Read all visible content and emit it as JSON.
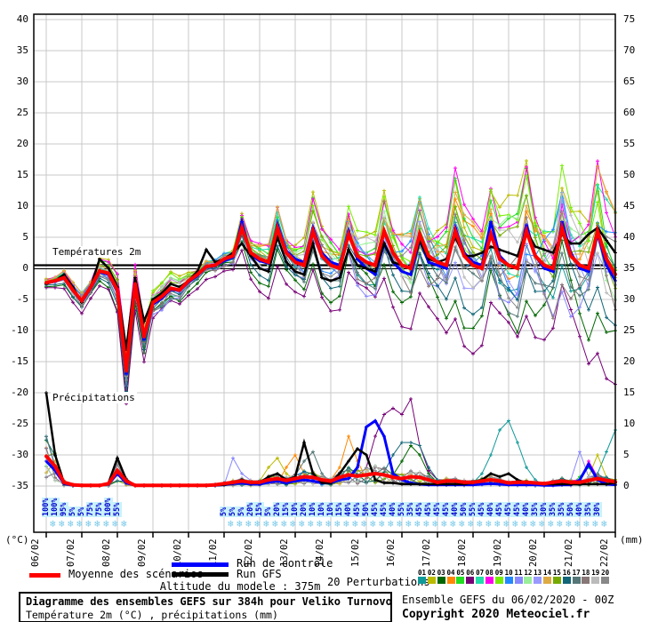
{
  "chart_data": {
    "type": "line",
    "title": "Diagramme des ensembles GEFS sur 384h pour Veliko Turnovo",
    "subtitle": "Température 2m (°C) , précipitations (mm)",
    "step_hours": 6,
    "x_dates": [
      "06/02",
      "07/02",
      "08/02",
      "09/02",
      "10/02",
      "11/02",
      "12/02",
      "13/02",
      "14/02",
      "15/02",
      "16/02",
      "17/02",
      "18/02",
      "19/02",
      "20/02",
      "21/02",
      "22/02"
    ],
    "y_left": {
      "label": "(°C)",
      "min": -35,
      "max": 40,
      "tick_step": 5
    },
    "y_right": {
      "label": "(mm)",
      "min": 0,
      "max": 75,
      "tick_step": 5
    },
    "annotations": {
      "temp_label": "Températures 2m",
      "precip_label": "Précipitations"
    },
    "series": {
      "mean_temp": [
        -2.3,
        -2,
        -1.5,
        -3.5,
        -5.2,
        -3,
        -0.4,
        -0.8,
        -3.5,
        -16.5,
        -2.5,
        -11,
        -5.5,
        -4.5,
        -3.2,
        -3.5,
        -2,
        -1,
        0.3,
        0.5,
        1.5,
        2,
        6.5,
        2.5,
        1.5,
        1,
        6.5,
        2.5,
        1,
        0.5,
        6,
        2,
        0.5,
        0,
        5.5,
        2,
        1,
        0.5,
        6,
        2.5,
        0.5,
        0,
        5.5,
        2,
        1,
        0.5,
        6,
        2,
        0.5,
        0,
        5.5,
        1.5,
        0.5,
        0,
        6,
        2,
        0.5,
        0,
        6.5,
        2,
        0.5,
        0,
        6,
        1.5,
        -1
      ],
      "control_temp": [
        -2.4,
        -2.1,
        -1.6,
        -3.6,
        -5.4,
        -3.2,
        -0.6,
        -1,
        -3.8,
        -17,
        -2.8,
        -11.5,
        -5.8,
        -4.8,
        -3.4,
        -3.6,
        -2.2,
        -1.2,
        0.2,
        0.4,
        1.2,
        1.8,
        7.5,
        2.2,
        1.2,
        0.8,
        7,
        2.8,
        1.5,
        1,
        6.5,
        2.5,
        1,
        0.5,
        6,
        1.5,
        0,
        -1,
        4,
        1,
        -0.5,
        -1,
        4.5,
        1,
        0.5,
        0,
        6.5,
        2.5,
        1,
        0.5,
        7.5,
        2,
        0.5,
        0,
        7,
        2,
        0,
        -0.5,
        7.5,
        2.5,
        0,
        -0.5,
        5.5,
        0.5,
        -2
      ],
      "gfs_temp": [
        -2.5,
        -2,
        -1,
        -3,
        -5.5,
        -3,
        1.5,
        0,
        -3,
        -13,
        -1.5,
        -8.5,
        -5,
        -4,
        -2.5,
        -3,
        -2,
        -0.5,
        3,
        1,
        1.5,
        2.5,
        4,
        2,
        0,
        -0.5,
        5,
        1,
        -0.5,
        -1,
        4,
        -1.5,
        -2,
        -1.5,
        3,
        0.5,
        0,
        -0.5,
        4,
        1,
        0.5,
        0,
        4.5,
        1.5,
        1,
        1.5,
        5,
        2,
        2,
        2.5,
        3.5,
        3,
        2.5,
        2,
        6,
        3.5,
        3,
        2.5,
        5.5,
        4,
        4,
        5.5,
        6.5,
        4.5,
        2.5
      ],
      "spread_env": [
        0.6,
        0.6,
        0.8,
        1,
        1.2,
        1.2,
        1.5,
        1.5,
        1.8,
        2.5,
        2,
        2.5,
        2,
        1.8,
        1.5,
        1.5,
        1.2,
        1,
        0.8,
        0.8,
        1,
        1.2,
        1.8,
        1.8,
        2,
        2.2,
        2.5,
        2.5,
        2.8,
        3,
        3.2,
        3.2,
        3.5,
        3.5,
        3.8,
        3.8,
        4,
        4.2,
        4.5,
        4.5,
        4.8,
        5,
        5.2,
        5.2,
        5.5,
        5.5,
        5.8,
        5.8,
        6,
        6.2,
        6.5,
        6.5,
        6.8,
        7,
        7.2,
        7.2,
        7.5,
        7.5,
        7.8,
        7.8,
        8,
        8.2,
        8.5,
        8.5,
        8.5
      ],
      "mean_precip": [
        4.8,
        3.2,
        0.6,
        0.2,
        0.1,
        0.1,
        0.1,
        0.4,
        2.5,
        0.8,
        0.1,
        0.1,
        0.1,
        0.1,
        0.1,
        0.1,
        0.1,
        0.1,
        0.1,
        0.2,
        0.4,
        0.6,
        0.8,
        0.6,
        0.6,
        1,
        1.2,
        0.9,
        1.2,
        1.5,
        1.4,
        1,
        0.8,
        1.4,
        1.8,
        1.6,
        1.8,
        2,
        1.8,
        1.4,
        1.2,
        1.5,
        1.4,
        1,
        0.6,
        0.8,
        0.8,
        0.6,
        0.6,
        0.8,
        1,
        0.8,
        0.5,
        0.6,
        0.6,
        0.5,
        0.4,
        0.6,
        0.8,
        0.6,
        0.6,
        0.9,
        1.2,
        0.9,
        0.7
      ],
      "control_precip": [
        4,
        2.5,
        0.4,
        0.1,
        0.1,
        0.1,
        0.1,
        0.3,
        2,
        0.5,
        0.1,
        0.1,
        0.1,
        0.1,
        0.1,
        0.1,
        0.1,
        0.1,
        0.1,
        0.1,
        0.2,
        0.4,
        0.5,
        0.3,
        0.3,
        0.6,
        0.8,
        0.5,
        0.8,
        1,
        0.8,
        0.5,
        0.5,
        1,
        1.2,
        3,
        9.5,
        10.5,
        8,
        2,
        1,
        0.5,
        0.3,
        0.2,
        0.2,
        0.2,
        0.2,
        0.2,
        0.2,
        0.3,
        0.4,
        0.3,
        0.2,
        0.2,
        0.2,
        0.2,
        0.1,
        0.1,
        0.2,
        0.2,
        1,
        3.5,
        1,
        0.3,
        0.2
      ],
      "gfs_precip": [
        15,
        5,
        0.5,
        0.1,
        0.1,
        0.1,
        0.1,
        0.5,
        4.5,
        1,
        0.1,
        0.1,
        0.1,
        0.1,
        0.1,
        0.1,
        0.1,
        0.1,
        0.1,
        0.1,
        0.2,
        0.5,
        1,
        0.5,
        0.5,
        1.5,
        2,
        1,
        1.5,
        7,
        2,
        0.5,
        0.5,
        2,
        4,
        6,
        5,
        1,
        0.5,
        0.5,
        0.3,
        0.3,
        0.3,
        0.3,
        0.3,
        0.3,
        0.3,
        0.3,
        0.5,
        1,
        2,
        1.5,
        2,
        1,
        0.5,
        0.5,
        0.3,
        0.3,
        0.3,
        0.3,
        0.3,
        0.3,
        0.3,
        0.3,
        0.5
      ]
    },
    "perturbations": [
      {
        "num": "01",
        "color": "#119999",
        "bias": -0.25,
        "diurnal": 0
      },
      {
        "num": "02",
        "color": "#bbbb00",
        "bias": 0.8,
        "diurnal": 0.9
      },
      {
        "num": "03",
        "color": "#006600",
        "bias": -1.0,
        "diurnal": 0,
        "trend": -0.02
      },
      {
        "num": "04",
        "color": "#ff8800",
        "bias": 0.45,
        "diurnal": 0.7
      },
      {
        "num": "05",
        "color": "#22dd22",
        "bias": 0.6,
        "diurnal": 1.0
      },
      {
        "num": "06",
        "color": "#770077",
        "bias": -1.35,
        "diurnal": -0.4,
        "trend": -0.05
      },
      {
        "num": "07",
        "color": "#22ddaa",
        "bias": 0.5,
        "diurnal": 0
      },
      {
        "num": "08",
        "color": "#ff00ee",
        "bias": 0.8,
        "diurnal": 1.2
      },
      {
        "num": "09",
        "color": "#77ee00",
        "bias": 0.65,
        "diurnal": 1.1
      },
      {
        "num": "10",
        "color": "#2288ff",
        "bias": 0.1,
        "diurnal": 0
      },
      {
        "num": "11",
        "color": "#8888ff",
        "bias": -0.5,
        "diurnal": 0
      },
      {
        "num": "12",
        "color": "#99ee99",
        "bias": 0.35,
        "diurnal": 0
      },
      {
        "num": "13",
        "color": "#9999ff",
        "bias": -0.2,
        "diurnal": 0
      },
      {
        "num": "14",
        "color": "#ddaa44",
        "bias": 0.55,
        "diurnal": 0.6
      },
      {
        "num": "15",
        "color": "#77aa00",
        "bias": 0.3,
        "diurnal": 0
      },
      {
        "num": "16",
        "color": "#116677",
        "bias": -0.75,
        "diurnal": 0
      },
      {
        "num": "17",
        "color": "#557777",
        "bias": -0.5,
        "diurnal": 0
      },
      {
        "num": "18",
        "color": "#887777",
        "bias": -0.3,
        "diurnal": 0
      },
      {
        "num": "19",
        "color": "#bbbbbb",
        "bias": 0.15,
        "diurnal": 0
      },
      {
        "num": "20",
        "color": "#888888",
        "bias": -0.1,
        "diurnal": 0
      }
    ],
    "precip_events": [
      {
        "pert": 6,
        "points": {
          "35": 1,
          "36": 2,
          "37": 8,
          "38": 11.5,
          "39": 12.5,
          "40": 11.5,
          "41": 14,
          "42": 6.5,
          "43": 2.5,
          "44": 1
        }
      },
      {
        "pert": 16,
        "points": {
          "38": 2,
          "39": 5,
          "40": 7,
          "41": 7,
          "42": 6.5,
          "43": 3,
          "44": 1
        }
      },
      {
        "pert": 1,
        "points": {
          "49": 2,
          "50": 5,
          "51": 9,
          "52": 10.5,
          "53": 7,
          "54": 3,
          "55": 1,
          "62": 2,
          "63": 5.5,
          "64": 9
        }
      },
      {
        "pert": 4,
        "points": {
          "27": 3,
          "28": 5,
          "29": 2,
          "33": 3,
          "34": 8,
          "35": 4
        }
      },
      {
        "pert": 3,
        "points": {
          "40": 4,
          "41": 6.5,
          "42": 5,
          "43": 2
        }
      },
      {
        "pert": 8,
        "points": {
          "60": 1,
          "61": 4,
          "62": 1.5
        }
      },
      {
        "pert": 5,
        "points": {
          "60": 1.5,
          "61": 3,
          "62": 1
        }
      },
      {
        "pert": 17,
        "points": {
          "29": 4,
          "30": 5.5,
          "31": 2
        }
      },
      {
        "pert": 11,
        "points": {
          "21": 4.5,
          "22": 2,
          "59": 1,
          "60": 5.5,
          "61": 1.5
        }
      },
      {
        "pert": 2,
        "points": {
          "25": 3,
          "26": 4.5,
          "27": 2,
          "61": 1.5,
          "62": 5,
          "63": 1
        }
      }
    ],
    "snow_groups": [
      {
        "start_t": 1,
        "percents": [
          100,
          100,
          95,
          5,
          5,
          75,
          75,
          100,
          55
        ]
      },
      {
        "start_t": 21,
        "percents": [
          5,
          5,
          5,
          20,
          15,
          5,
          20,
          15,
          10,
          20,
          10,
          10,
          10,
          15,
          40,
          45,
          50,
          45,
          45,
          40,
          55,
          35,
          45,
          45,
          45,
          45,
          40,
          50,
          55,
          45,
          40,
          45,
          45,
          45,
          40,
          35,
          30,
          35,
          35,
          50,
          40,
          35,
          30
        ]
      }
    ]
  },
  "colors": {
    "mean": "#ff0000",
    "control": "#0000ff",
    "gfs": "#000000",
    "grid": "#c8c8c8",
    "border": "#000000",
    "snow_label": "#0000cc",
    "snow_bg": "#c9f2fc",
    "snowflake": "#77c9e8"
  },
  "legend": {
    "mean": "Moyenne des scénarios",
    "control": "Run de contrôle",
    "gfs": "Run GFS",
    "perturbations": "20 Perturbations"
  },
  "footer": {
    "altitude": "Altitude du modele : 375m",
    "box_title": "Diagramme des ensembles GEFS sur 384h pour Veliko Turnovo",
    "box_subtitle": "Température 2m (°C) , précipitations (mm)",
    "run_info": "Ensemble GEFS du 06/02/2020 - 00Z",
    "copyright": "Copyright 2020 Meteociel.fr"
  }
}
